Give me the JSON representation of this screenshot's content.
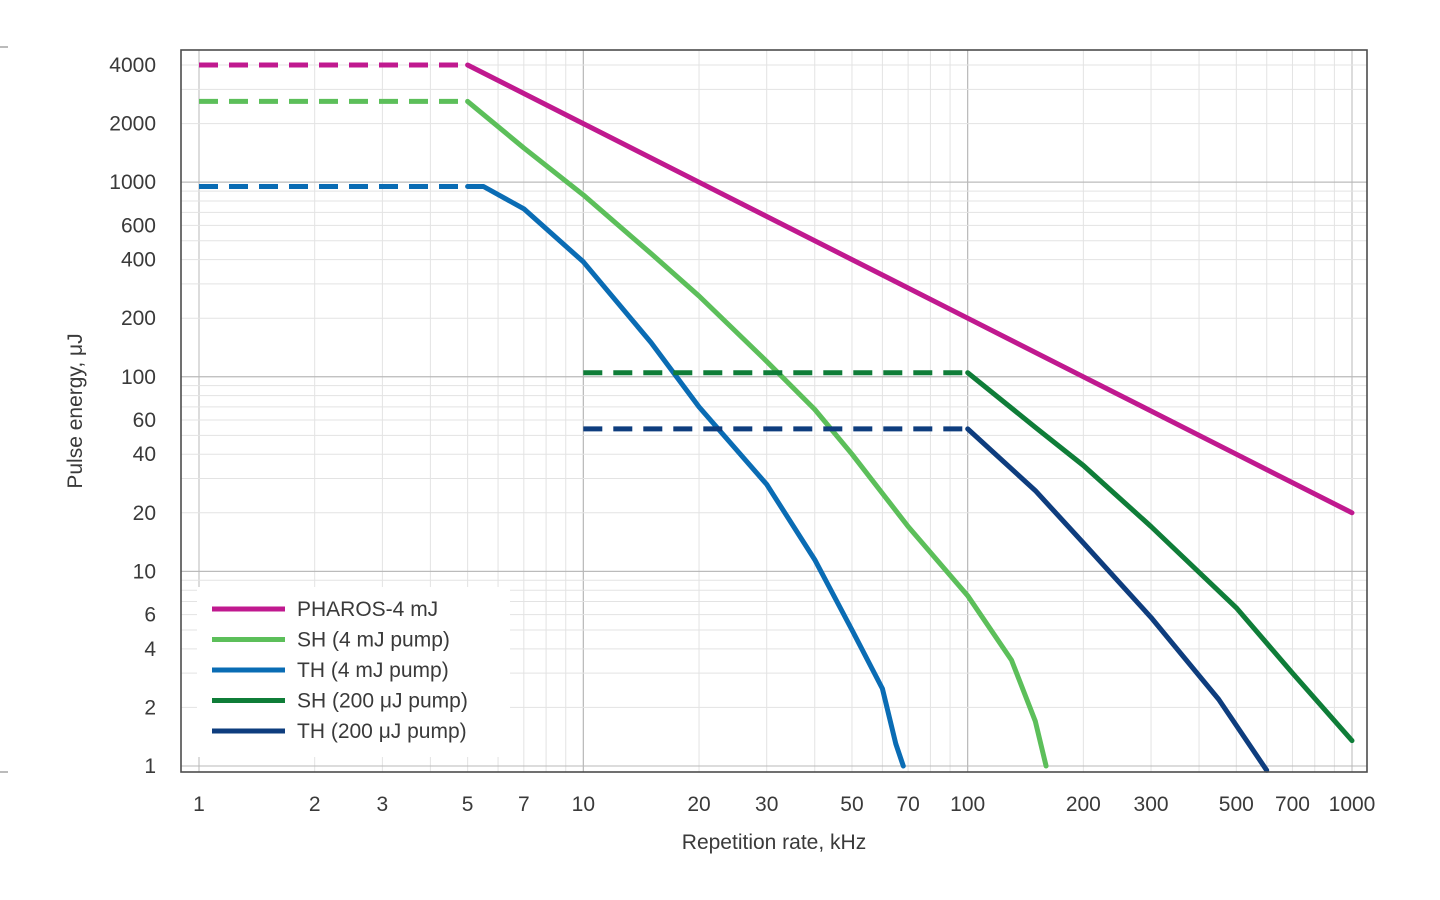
{
  "chart_data": {
    "type": "line",
    "xscale": "log",
    "yscale": "log",
    "xlabel": "Repetition rate, kHz",
    "ylabel": "Pulse energy, μJ",
    "xlim": [
      1,
      1000
    ],
    "ylim": [
      1,
      4000
    ],
    "grid": true,
    "legend_position": "bottom-left",
    "xticks": [
      {
        "value": 1,
        "label": "1"
      },
      {
        "value": 2,
        "label": "2"
      },
      {
        "value": 3,
        "label": "3"
      },
      {
        "value": 5,
        "label": "5"
      },
      {
        "value": 7,
        "label": "7"
      },
      {
        "value": 10,
        "label": "10"
      },
      {
        "value": 20,
        "label": "20"
      },
      {
        "value": 30,
        "label": "30"
      },
      {
        "value": 50,
        "label": "50"
      },
      {
        "value": 70,
        "label": "70"
      },
      {
        "value": 100,
        "label": "100"
      },
      {
        "value": 200,
        "label": "200"
      },
      {
        "value": 300,
        "label": "300"
      },
      {
        "value": 500,
        "label": "500"
      },
      {
        "value": 700,
        "label": "700"
      },
      {
        "value": 1000,
        "label": "1000"
      }
    ],
    "yticks": [
      {
        "value": 1,
        "label": "1"
      },
      {
        "value": 2,
        "label": "2"
      },
      {
        "value": 4,
        "label": "4"
      },
      {
        "value": 6,
        "label": "6"
      },
      {
        "value": 10,
        "label": "10"
      },
      {
        "value": 20,
        "label": "20"
      },
      {
        "value": 40,
        "label": "40"
      },
      {
        "value": 60,
        "label": "60"
      },
      {
        "value": 100,
        "label": "100"
      },
      {
        "value": 200,
        "label": "200"
      },
      {
        "value": 400,
        "label": "400"
      },
      {
        "value": 600,
        "label": "600"
      },
      {
        "value": 1000,
        "label": "1000"
      },
      {
        "value": 2000,
        "label": "2000"
      },
      {
        "value": 4000,
        "label": "4000"
      }
    ],
    "series": [
      {
        "name": "PHAROS-4 mJ",
        "color": "#c0198f",
        "dashed": {
          "x": [
            1,
            5
          ],
          "y": [
            4000,
            4000
          ]
        },
        "solid": {
          "x": [
            5,
            10,
            20,
            50,
            100,
            200,
            500,
            1000
          ],
          "y": [
            4000,
            2000,
            1000,
            400,
            200,
            100,
            40,
            20
          ]
        }
      },
      {
        "name": "SH (4 mJ pump)",
        "color": "#5cbf5a",
        "dashed": {
          "x": [
            1,
            5
          ],
          "y": [
            2600,
            2600
          ]
        },
        "solid": {
          "x": [
            5,
            7,
            10,
            15,
            20,
            30,
            40,
            50,
            70,
            100,
            130,
            150,
            160
          ],
          "y": [
            2600,
            1500,
            860,
            430,
            260,
            120,
            68,
            40,
            17,
            7.5,
            3.5,
            1.7,
            1
          ]
        }
      },
      {
        "name": "TH (4 mJ pump)",
        "color": "#0a6cb4",
        "dashed": {
          "x": [
            1,
            5
          ],
          "y": [
            950,
            950
          ]
        },
        "solid": {
          "x": [
            5,
            5.5,
            7,
            10,
            15,
            20,
            30,
            40,
            50,
            60,
            65,
            68
          ],
          "y": [
            950,
            950,
            730,
            390,
            150,
            70,
            28,
            11.5,
            5,
            2.5,
            1.3,
            1
          ]
        }
      },
      {
        "name": "SH (200 μJ pump)",
        "color": "#0f7d38",
        "dashed": {
          "x": [
            10,
            100
          ],
          "y": [
            105,
            105
          ]
        },
        "solid": {
          "x": [
            100,
            150,
            200,
            300,
            500,
            700,
            1000
          ],
          "y": [
            105,
            55,
            35,
            17,
            6.5,
            3,
            1.35
          ]
        }
      },
      {
        "name": "TH (200 μJ pump)",
        "color": "#0e3d7e",
        "dashed": {
          "x": [
            10,
            100
          ],
          "y": [
            54,
            54
          ]
        },
        "solid": {
          "x": [
            100,
            150,
            200,
            300,
            450,
            600
          ],
          "y": [
            54,
            26,
            14,
            5.8,
            2.2,
            0.95
          ]
        }
      }
    ]
  }
}
